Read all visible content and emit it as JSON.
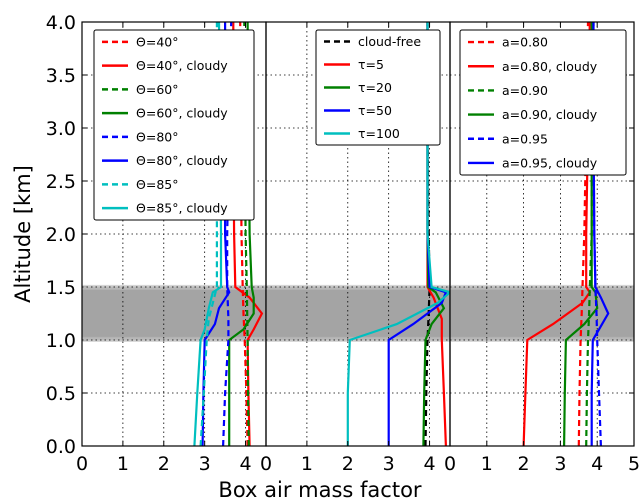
{
  "chart_data": [
    {
      "type": "line",
      "xlim": [
        0,
        4.5
      ],
      "ylim": [
        0,
        4
      ],
      "xticks": [
        "0",
        "1",
        "2",
        "3",
        "4"
      ],
      "yticks": [
        "0.0",
        "0.5",
        "1.0",
        "1.5",
        "2.0",
        "2.5",
        "3.0",
        "3.5",
        "4.0"
      ],
      "ylabel": "Altitude [km]",
      "grid": true,
      "shaded_band": [
        1.0,
        1.5
      ],
      "legend": {
        "placement": "top"
      },
      "series": [
        {
          "name": "Θ=40°",
          "color": "#ff0000",
          "dash": true,
          "points": [
            [
              4.05,
              0
            ],
            [
              4.02,
              0.5
            ],
            [
              3.98,
              1.0
            ],
            [
              3.95,
              1.25
            ],
            [
              3.93,
              1.5
            ],
            [
              3.9,
              2.0
            ],
            [
              3.88,
              3.0
            ],
            [
              3.87,
              4.0
            ]
          ]
        },
        {
          "name": "Θ=40°, cloudy",
          "color": "#ff0000",
          "dash": false,
          "points": [
            [
              4.1,
              0
            ],
            [
              4.07,
              0.5
            ],
            [
              4.05,
              1.0
            ],
            [
              4.2,
              1.1
            ],
            [
              4.4,
              1.25
            ],
            [
              4.1,
              1.4
            ],
            [
              3.75,
              1.5
            ],
            [
              3.72,
              2.0
            ],
            [
              3.7,
              3.0
            ],
            [
              3.7,
              4.0
            ]
          ]
        },
        {
          "name": "Θ=60°",
          "color": "#008000",
          "dash": true,
          "points": [
            [
              4.08,
              0
            ],
            [
              4.06,
              0.5
            ],
            [
              4.05,
              1.0
            ],
            [
              4.03,
              1.5
            ],
            [
              4.0,
              2.0
            ],
            [
              3.98,
              3.0
            ],
            [
              3.97,
              4.0
            ]
          ]
        },
        {
          "name": "Θ=60°, cloudy",
          "color": "#008000",
          "dash": false,
          "points": [
            [
              3.6,
              0
            ],
            [
              3.6,
              0.5
            ],
            [
              3.6,
              1.0
            ],
            [
              3.95,
              1.1
            ],
            [
              4.2,
              1.25
            ],
            [
              4.2,
              1.4
            ],
            [
              4.15,
              1.5
            ],
            [
              4.1,
              2.0
            ],
            [
              4.08,
              3.0
            ],
            [
              4.05,
              4.0
            ]
          ]
        },
        {
          "name": "Θ=80°",
          "color": "#0000ff",
          "dash": true,
          "points": [
            [
              3.45,
              0
            ],
            [
              3.5,
              0.5
            ],
            [
              3.58,
              1.0
            ],
            [
              3.58,
              1.2
            ],
            [
              3.55,
              1.5
            ],
            [
              3.55,
              2.0
            ],
            [
              3.6,
              3.0
            ],
            [
              3.65,
              4.0
            ]
          ]
        },
        {
          "name": "Θ=80°, cloudy",
          "color": "#0000ff",
          "dash": false,
          "points": [
            [
              2.95,
              0
            ],
            [
              2.97,
              0.5
            ],
            [
              3.0,
              1.0
            ],
            [
              3.25,
              1.15
            ],
            [
              3.35,
              1.3
            ],
            [
              3.6,
              1.45
            ],
            [
              3.55,
              1.5
            ],
            [
              3.5,
              2.0
            ],
            [
              3.5,
              3.0
            ],
            [
              3.5,
              4.0
            ]
          ]
        },
        {
          "name": "Θ=85°",
          "color": "#00bfbf",
          "dash": true,
          "points": [
            [
              2.9,
              0
            ],
            [
              2.98,
              0.5
            ],
            [
              3.05,
              1.0
            ],
            [
              3.1,
              1.2
            ],
            [
              3.3,
              1.5
            ],
            [
              3.3,
              2.0
            ],
            [
              3.3,
              3.0
            ],
            [
              3.3,
              4.0
            ]
          ]
        },
        {
          "name": "Θ=85°, cloudy",
          "color": "#00bfbf",
          "dash": false,
          "points": [
            [
              2.75,
              0
            ],
            [
              2.82,
              0.5
            ],
            [
              2.9,
              1.0
            ],
            [
              3.0,
              1.1
            ],
            [
              3.1,
              1.3
            ],
            [
              3.2,
              1.45
            ],
            [
              3.4,
              1.5
            ],
            [
              3.4,
              2.0
            ],
            [
              3.38,
              3.0
            ],
            [
              3.35,
              4.0
            ]
          ]
        }
      ]
    },
    {
      "type": "line",
      "xlim": [
        0,
        4.5
      ],
      "ylim": [
        0,
        4
      ],
      "xticks": [
        "0",
        "1",
        "2",
        "3",
        "4"
      ],
      "grid": true,
      "shaded_band": [
        1.0,
        1.5
      ],
      "legend": {
        "placement": "top"
      },
      "series": [
        {
          "name": "cloud-free",
          "color": "#000000",
          "dash": true,
          "points": [
            [
              3.9,
              0
            ],
            [
              3.92,
              0.5
            ],
            [
              3.95,
              1.0
            ],
            [
              3.98,
              1.25
            ],
            [
              4.0,
              1.5
            ],
            [
              3.98,
              2.0
            ],
            [
              3.95,
              3.0
            ],
            [
              3.95,
              4.0
            ]
          ]
        },
        {
          "name": "τ=5",
          "color": "#ff0000",
          "dash": false,
          "points": [
            [
              4.4,
              0
            ],
            [
              4.35,
              0.5
            ],
            [
              4.3,
              1.0
            ],
            [
              4.3,
              1.2
            ],
            [
              4.1,
              1.4
            ],
            [
              3.95,
              1.5
            ],
            [
              3.95,
              2.0
            ],
            [
              3.95,
              3.0
            ],
            [
              3.95,
              4.0
            ]
          ]
        },
        {
          "name": "τ=20",
          "color": "#008000",
          "dash": false,
          "points": [
            [
              3.85,
              0
            ],
            [
              3.87,
              0.5
            ],
            [
              3.9,
              1.0
            ],
            [
              4.05,
              1.15
            ],
            [
              4.35,
              1.3
            ],
            [
              4.15,
              1.45
            ],
            [
              3.97,
              1.5
            ],
            [
              3.95,
              2.0
            ],
            [
              3.95,
              3.0
            ],
            [
              3.95,
              4.0
            ]
          ]
        },
        {
          "name": "τ=50",
          "color": "#0000ff",
          "dash": false,
          "points": [
            [
              3.0,
              0
            ],
            [
              3.0,
              0.5
            ],
            [
              3.0,
              1.0
            ],
            [
              3.6,
              1.15
            ],
            [
              4.3,
              1.35
            ],
            [
              4.4,
              1.45
            ],
            [
              4.0,
              1.5
            ],
            [
              3.95,
              2.0
            ],
            [
              3.95,
              3.0
            ],
            [
              3.95,
              4.0
            ]
          ]
        },
        {
          "name": "τ=100",
          "color": "#00bfbf",
          "dash": false,
          "points": [
            [
              2.0,
              0
            ],
            [
              2.0,
              0.5
            ],
            [
              2.05,
              1.0
            ],
            [
              3.2,
              1.15
            ],
            [
              4.2,
              1.35
            ],
            [
              4.5,
              1.45
            ],
            [
              4.05,
              1.5
            ],
            [
              3.95,
              2.0
            ],
            [
              3.95,
              3.0
            ],
            [
              3.95,
              4.0
            ]
          ]
        }
      ]
    },
    {
      "type": "line",
      "xlim": [
        0,
        5
      ],
      "ylim": [
        0,
        4
      ],
      "xticks": [
        "0",
        "1",
        "2",
        "3",
        "4",
        "5"
      ],
      "xlabel": "Box air mass factor",
      "grid": true,
      "shaded_band": [
        1.0,
        1.5
      ],
      "legend": {
        "placement": "top"
      },
      "series": [
        {
          "name": "a=0.80",
          "color": "#ff0000",
          "dash": true,
          "points": [
            [
              3.5,
              0
            ],
            [
              3.52,
              0.5
            ],
            [
              3.55,
              1.0
            ],
            [
              3.58,
              1.25
            ],
            [
              3.6,
              1.5
            ],
            [
              3.65,
              2.0
            ],
            [
              3.7,
              3.0
            ],
            [
              3.75,
              4.0
            ]
          ]
        },
        {
          "name": "a=0.80, cloudy",
          "color": "#ff0000",
          "dash": false,
          "points": [
            [
              2.0,
              0
            ],
            [
              2.05,
              0.5
            ],
            [
              2.1,
              1.0
            ],
            [
              2.8,
              1.15
            ],
            [
              3.6,
              1.35
            ],
            [
              3.8,
              1.45
            ],
            [
              3.7,
              1.5
            ],
            [
              3.7,
              2.0
            ],
            [
              3.75,
              3.0
            ],
            [
              3.8,
              4.0
            ]
          ]
        },
        {
          "name": "a=0.90",
          "color": "#008000",
          "dash": true,
          "points": [
            [
              3.7,
              0
            ],
            [
              3.72,
              0.5
            ],
            [
              3.75,
              1.0
            ],
            [
              3.78,
              1.25
            ],
            [
              3.8,
              1.5
            ],
            [
              3.85,
              2.0
            ],
            [
              3.85,
              3.0
            ],
            [
              3.85,
              4.0
            ]
          ]
        },
        {
          "name": "a=0.90, cloudy",
          "color": "#008000",
          "dash": false,
          "points": [
            [
              3.1,
              0
            ],
            [
              3.12,
              0.5
            ],
            [
              3.15,
              1.0
            ],
            [
              3.65,
              1.15
            ],
            [
              4.0,
              1.3
            ],
            [
              3.95,
              1.45
            ],
            [
              3.85,
              1.5
            ],
            [
              3.85,
              2.0
            ],
            [
              3.85,
              3.0
            ],
            [
              3.85,
              4.0
            ]
          ]
        },
        {
          "name": "a=0.95",
          "color": "#0000ff",
          "dash": true,
          "points": [
            [
              4.1,
              0
            ],
            [
              4.05,
              0.5
            ],
            [
              4.0,
              1.0
            ],
            [
              3.98,
              1.25
            ],
            [
              3.95,
              1.5
            ],
            [
              3.92,
              2.0
            ],
            [
              3.9,
              3.0
            ],
            [
              3.9,
              4.0
            ]
          ]
        },
        {
          "name": "a=0.95, cloudy",
          "color": "#0000ff",
          "dash": false,
          "points": [
            [
              3.85,
              0
            ],
            [
              3.85,
              0.5
            ],
            [
              3.88,
              1.0
            ],
            [
              4.05,
              1.1
            ],
            [
              4.3,
              1.25
            ],
            [
              4.1,
              1.4
            ],
            [
              3.95,
              1.5
            ],
            [
              3.92,
              2.0
            ],
            [
              3.9,
              3.0
            ],
            [
              3.9,
              4.0
            ]
          ]
        }
      ]
    }
  ]
}
